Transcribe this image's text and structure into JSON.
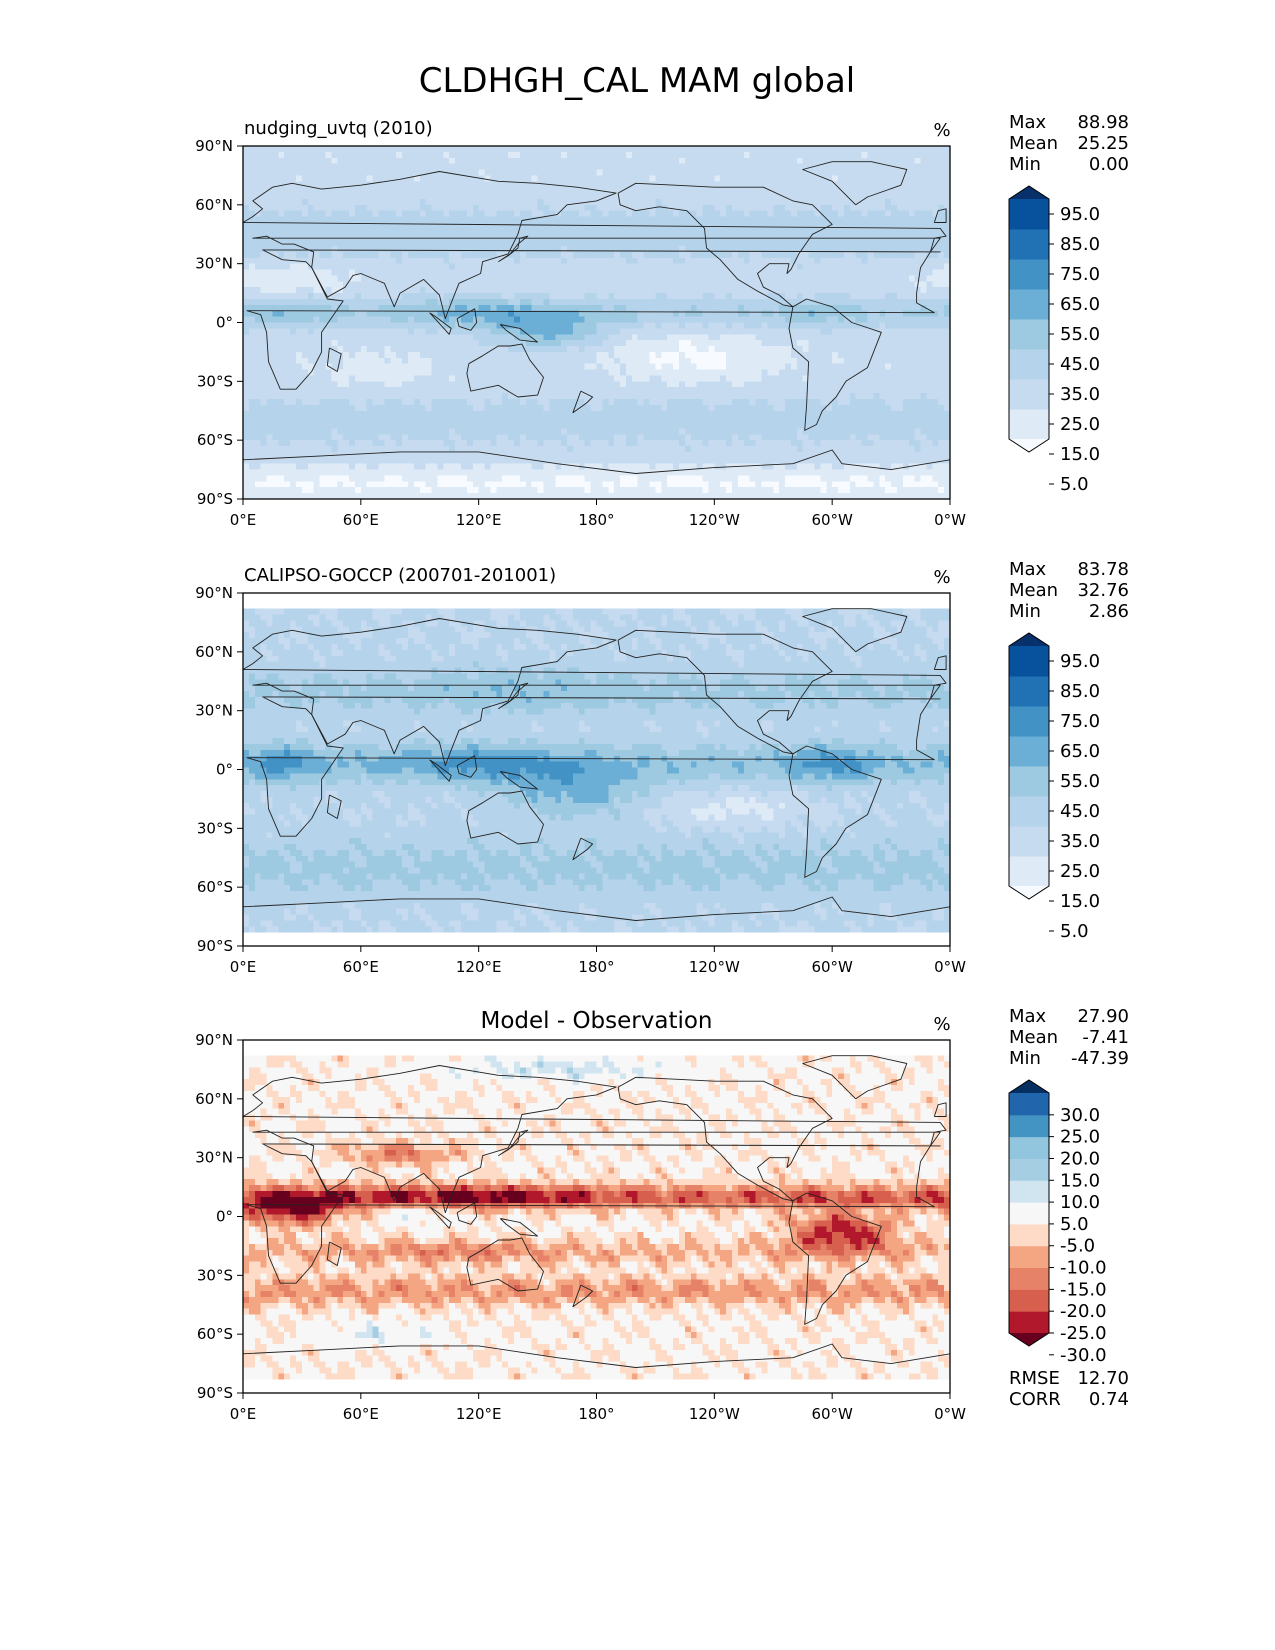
{
  "title": "CLDHGH_CAL MAM global",
  "colors": {
    "seq": [
      "#f7fbff",
      "#deebf7",
      "#c6dbef",
      "#b5d3ea",
      "#9ecae1",
      "#6baed6",
      "#4292c6",
      "#2171b5",
      "#08519c",
      "#08306b"
    ],
    "div": [
      "#67001f",
      "#b2182b",
      "#d6604d",
      "#e58267",
      "#f4a582",
      "#fddbc7",
      "#f7f7f7",
      "#d1e5f0",
      "#a6cee3",
      "#92c5de",
      "#4393c3",
      "#2166ac",
      "#053061"
    ],
    "coast": "#222222"
  },
  "chart_data": [
    {
      "type": "heatmap",
      "name": "model",
      "title_left": "nudging_uvtq (2010)",
      "title_center": "",
      "units": "%",
      "stats_labels": [
        "Max",
        "Mean",
        "Min"
      ],
      "stats_values": [
        "88.98",
        "25.25",
        "0.00"
      ],
      "colorbar_ticks": [
        "95.0",
        "85.0",
        "75.0",
        "65.0",
        "55.0",
        "45.0",
        "35.0",
        "25.0",
        "15.0",
        "5.0"
      ],
      "palette": "seq",
      "x_ticks": [
        "0°E",
        "60°E",
        "120°E",
        "180°",
        "120°W",
        "60°W",
        "0°W"
      ],
      "y_ticks": [
        "90°N",
        "60°N",
        "30°N",
        "0°",
        "30°S",
        "60°S",
        "90°S"
      ],
      "xlim": [
        0,
        360
      ],
      "ylim": [
        -90,
        90
      ],
      "lat_coverage": [
        -90,
        90
      ],
      "field": "model"
    },
    {
      "type": "heatmap",
      "name": "observation",
      "title_left": "CALIPSO-GOCCP (200701-201001)",
      "title_center": "",
      "units": "%",
      "stats_labels": [
        "Max",
        "Mean",
        "Min"
      ],
      "stats_values": [
        "83.78",
        "32.76",
        "2.86"
      ],
      "colorbar_ticks": [
        "95.0",
        "85.0",
        "75.0",
        "65.0",
        "55.0",
        "45.0",
        "35.0",
        "25.0",
        "15.0",
        "5.0"
      ],
      "palette": "seq",
      "x_ticks": [
        "0°E",
        "60°E",
        "120°E",
        "180°",
        "120°W",
        "60°W",
        "0°W"
      ],
      "y_ticks": [
        "90°N",
        "60°N",
        "30°N",
        "0°",
        "30°S",
        "60°S",
        "90°S"
      ],
      "xlim": [
        0,
        360
      ],
      "ylim": [
        -90,
        90
      ],
      "lat_coverage": [
        -82,
        82
      ],
      "field": "obs"
    },
    {
      "type": "heatmap",
      "name": "difference",
      "title_left": "",
      "title_center": "Model - Observation",
      "units": "%",
      "stats_labels": [
        "Max",
        "Mean",
        "Min"
      ],
      "stats_values": [
        "27.90",
        "-7.41",
        "-47.39"
      ],
      "colorbar_ticks": [
        "30.0",
        "25.0",
        "20.0",
        "15.0",
        "10.0",
        "5.0",
        "-5.0",
        "-10.0",
        "-15.0",
        "-20.0",
        "-25.0",
        "-30.0"
      ],
      "palette": "div",
      "x_ticks": [
        "0°E",
        "60°E",
        "120°E",
        "180°",
        "120°W",
        "60°W",
        "0°W"
      ],
      "y_ticks": [
        "90°N",
        "60°N",
        "30°N",
        "0°",
        "30°S",
        "60°S",
        "90°S"
      ],
      "xlim": [
        0,
        360
      ],
      "ylim": [
        -90,
        90
      ],
      "lat_coverage": [
        -82,
        82
      ],
      "field": "diff",
      "extra_labels": [
        "RMSE",
        "CORR"
      ],
      "extra_values": [
        "12.70",
        "0.74"
      ]
    }
  ]
}
